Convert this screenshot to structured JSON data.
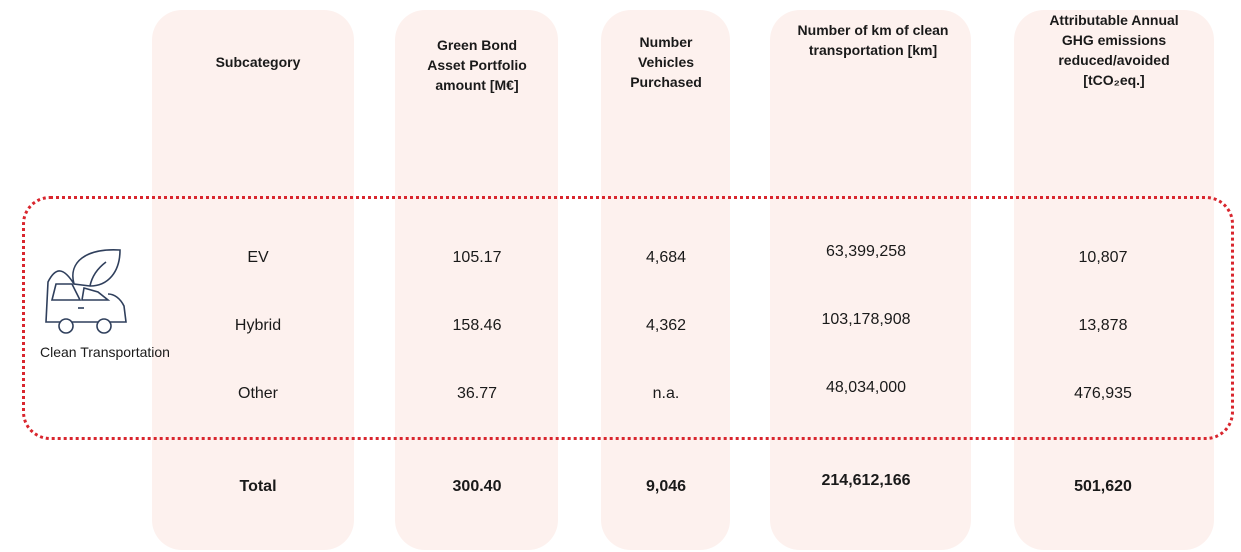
{
  "table": {
    "columns": [
      "Subcategory",
      "Green Bond Asset Portfolio amount [M€]",
      "Number Vehicles Purchased",
      "Number of km of clean transportation [km]",
      "Attributable Annual GHG emissions reduced/avoided [tCO₂eq.]"
    ],
    "category": "Clean Transportation",
    "rows": [
      [
        "EV",
        "105.17",
        "4,684",
        "63,399,258",
        "10,807"
      ],
      [
        "Hybrid",
        "158.46",
        "4,362",
        "103,178,908",
        "13,878"
      ],
      [
        "Other",
        "36.77",
        "n.a.",
        "48,034,000",
        "476,935"
      ]
    ],
    "total": [
      "Total",
      "300.40",
      "9,046",
      "214,612,166",
      "501,620"
    ]
  }
}
